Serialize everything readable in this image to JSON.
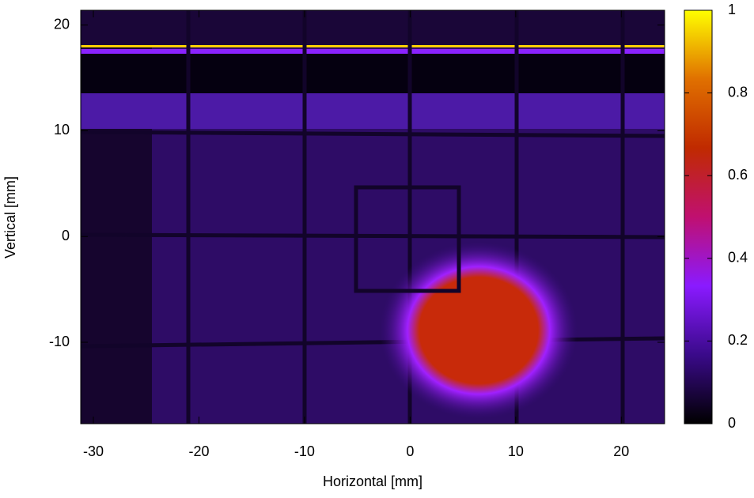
{
  "chart_data": {
    "type": "heatmap",
    "x_label": "Horizontal [mm]",
    "y_label": "Vertical [mm]",
    "xlim": [
      -31.2,
      24.1
    ],
    "xticks": [
      -30,
      -20,
      -10,
      0,
      10,
      20
    ],
    "ylim": [
      -17.7,
      21.4
    ],
    "yticks": [
      -10,
      0,
      10,
      20
    ],
    "colorbar": {
      "lim": [
        0,
        1
      ],
      "ticks": [
        0,
        0.2,
        0.4,
        0.6,
        0.8,
        1
      ],
      "colors": [
        "#000000",
        "#3a0a8a",
        "#8a1aff",
        "#c01070",
        "#c02a00",
        "#e07000",
        "#ffff00"
      ]
    }
  }
}
